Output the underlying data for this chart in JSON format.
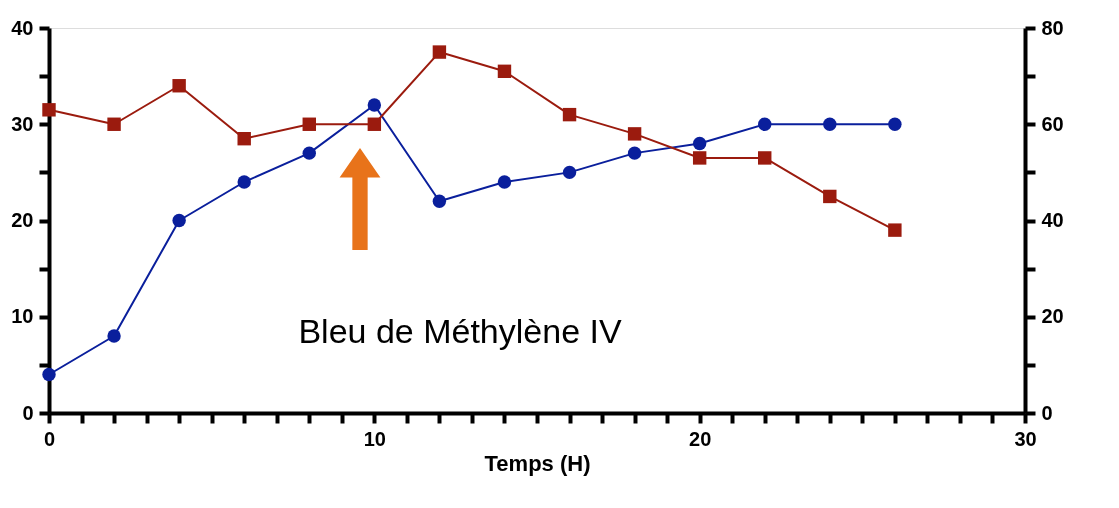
{
  "chart_data": {
    "type": "line",
    "xlabel": "Temps (H)",
    "x": [
      0,
      2,
      4,
      6,
      8,
      10,
      12,
      14,
      16,
      18,
      20,
      22,
      24,
      26
    ],
    "series": [
      {
        "color": "#0a1f9c",
        "marker": "circle",
        "values": [
          4,
          8,
          20,
          24,
          27,
          32,
          22,
          24,
          25,
          27,
          28,
          30,
          30,
          30
        ]
      },
      {
        "color": "#9b1b0e",
        "marker": "square",
        "axis": "y2",
        "values": [
          63,
          60,
          68,
          57,
          60,
          60,
          75,
          71,
          62,
          58,
          53,
          53,
          45,
          38
        ]
      }
    ],
    "xlim": [
      0,
      30
    ],
    "xticks": [
      0,
      {
        "value": 1,
        "label": null
      },
      {
        "value": 2,
        "label": null
      },
      {
        "value": 3,
        "label": null
      },
      {
        "value": 4,
        "label": null
      },
      {
        "value": 5,
        "label": null
      },
      {
        "value": 6,
        "label": null
      },
      {
        "value": 7,
        "label": null
      },
      {
        "value": 8,
        "label": null
      },
      {
        "value": 9,
        "label": null
      },
      10,
      {
        "value": 11,
        "label": null
      },
      {
        "value": 12,
        "label": null
      },
      {
        "value": 13,
        "label": null
      },
      {
        "value": 14,
        "label": null
      },
      {
        "value": 15,
        "label": null
      },
      {
        "value": 16,
        "label": null
      },
      {
        "value": 17,
        "label": null
      },
      {
        "value": 18,
        "label": null
      },
      {
        "value": 19,
        "label": null
      },
      20,
      {
        "value": 21,
        "label": null
      },
      {
        "value": 22,
        "label": null
      },
      {
        "value": 23,
        "label": null
      },
      {
        "value": 24,
        "label": null
      },
      {
        "value": 25,
        "label": null
      },
      {
        "value": 26,
        "label": null
      },
      {
        "value": 27,
        "label": null
      },
      {
        "value": 28,
        "label": null
      },
      {
        "value": 29,
        "label": null
      },
      30
    ],
    "ylim": [
      0,
      40
    ],
    "yticks": [
      0,
      {
        "value": 5,
        "label": null
      },
      10,
      {
        "value": 15,
        "label": null
      },
      20,
      {
        "value": 25,
        "label": null
      },
      30,
      {
        "value": 35,
        "label": null
      },
      40
    ],
    "y2lim": [
      0,
      80
    ],
    "y2ticks": [
      0,
      {
        "value": 10,
        "label": null
      },
      20,
      {
        "value": 30,
        "label": null
      },
      40,
      {
        "value": 50,
        "label": null
      },
      60,
      {
        "value": 70,
        "label": null
      },
      80
    ],
    "annotations": [
      "Bleu de Méthylène IV"
    ],
    "grid": false
  }
}
